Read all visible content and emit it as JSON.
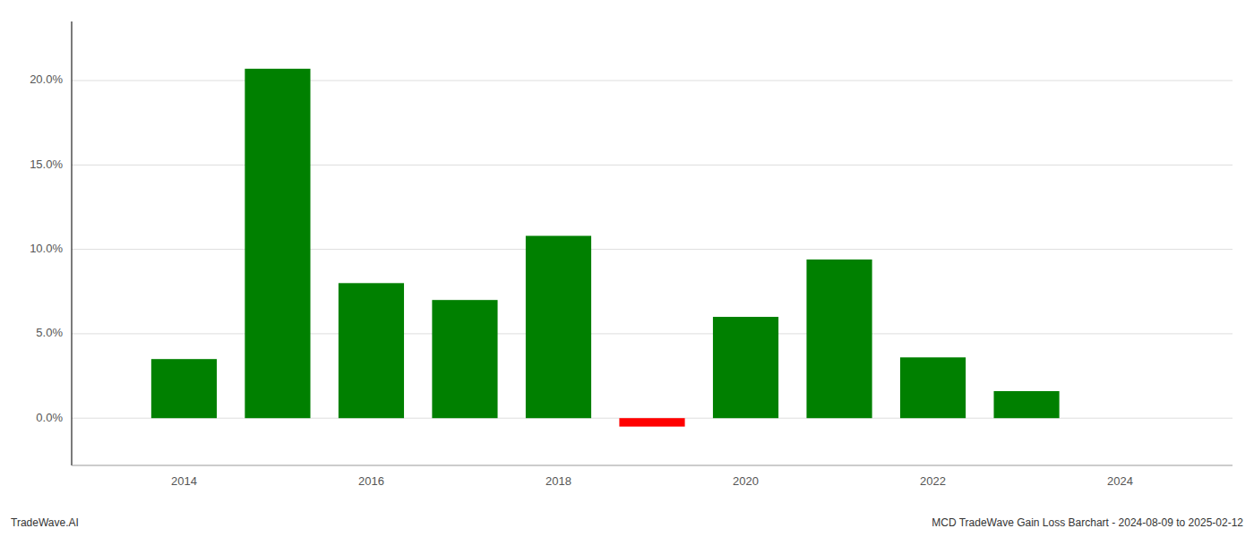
{
  "chart_data": {
    "type": "bar",
    "x": [
      2014,
      2015,
      2016,
      2017,
      2018,
      2019,
      2020,
      2021,
      2022,
      2023
    ],
    "values": [
      0.035,
      0.207,
      0.08,
      0.07,
      0.108,
      -0.005,
      0.06,
      0.094,
      0.036,
      0.016
    ],
    "colors": [
      "#008000",
      "#008000",
      "#008000",
      "#008000",
      "#008000",
      "#ff0000",
      "#008000",
      "#008000",
      "#008000",
      "#008000"
    ],
    "xlim": [
      2012.8,
      2025.2
    ],
    "xticks": [
      2014,
      2016,
      2018,
      2020,
      2022,
      2024
    ],
    "ylim": [
      -0.028,
      0.235
    ],
    "yticks": [
      {
        "value": 0.0,
        "label": "0.0%"
      },
      {
        "value": 0.05,
        "label": "5.0%"
      },
      {
        "value": 0.1,
        "label": "10.0%"
      },
      {
        "value": 0.15,
        "label": "15.0%"
      },
      {
        "value": 0.2,
        "label": "20.0%"
      }
    ],
    "grid": true,
    "annotations": [
      "TradeWave.AI",
      "MCD TradeWave Gain Loss Barchart - 2024-08-09 to 2025-02-12"
    ]
  }
}
